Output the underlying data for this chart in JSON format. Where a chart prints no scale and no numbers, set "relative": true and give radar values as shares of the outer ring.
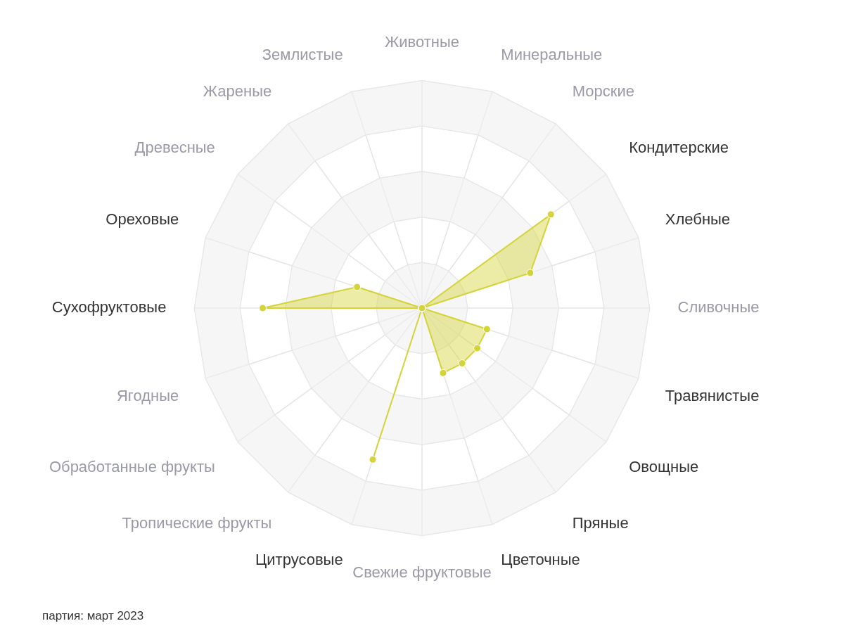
{
  "chart_data": {
    "type": "radar",
    "relative": true,
    "grid": true,
    "legend": false,
    "marker": "circle",
    "categories": [
      "Животные",
      "Минеральные",
      "Морские",
      "Кондитерские",
      "Хлебные",
      "Сливочные",
      "Травянистые",
      "Овощные",
      "Пряные",
      "Цветочные",
      "Свежие фруктовые",
      "Цитрусовые",
      "Тропические фрукты",
      "Обработанные фрукты",
      "Ягодные",
      "Сухофруктовые",
      "Ореховые",
      "Древесные",
      "Жареные",
      "Землистые"
    ],
    "series": [
      {
        "color": "#d4d43a",
        "values": [
          0,
          0,
          0,
          0.7,
          0.5,
          0,
          0.3,
          0.3,
          0.3,
          0.3,
          0,
          0.7,
          0,
          0,
          0,
          0.7,
          0.3,
          0,
          0,
          0
        ]
      }
    ],
    "annotations": [
      "партия: март 2023"
    ]
  }
}
